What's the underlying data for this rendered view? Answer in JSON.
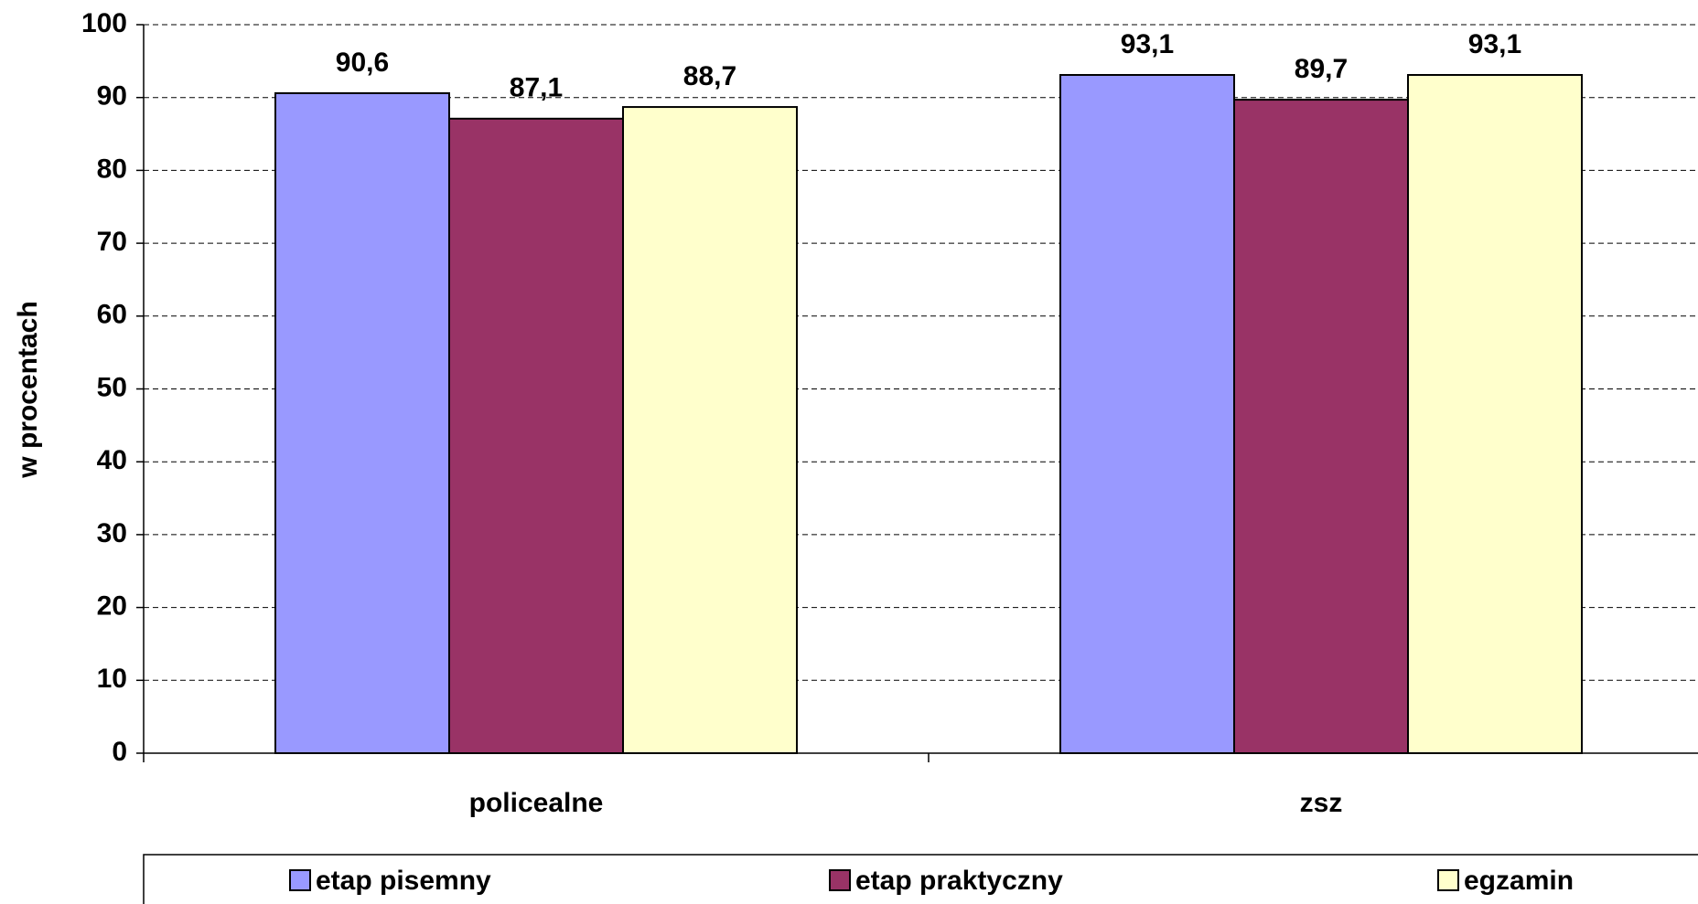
{
  "chart_data": {
    "type": "bar",
    "ylabel": "w procentach",
    "categories": [
      "policealne",
      "zsz"
    ],
    "series": [
      {
        "name": "etap pisemny",
        "color": "#9999ff",
        "values": [
          90.6,
          93.1
        ],
        "value_labels": [
          "90,6",
          "93,1"
        ]
      },
      {
        "name": "etap praktyczny",
        "color": "#993366",
        "values": [
          87.1,
          89.7
        ],
        "value_labels": [
          "87,1",
          "89,7"
        ]
      },
      {
        "name": "egzamin",
        "color": "#ffffcc",
        "values": [
          88.7,
          93.1
        ],
        "value_labels": [
          "88,7",
          "93,1"
        ]
      }
    ],
    "ylim": [
      0,
      100
    ],
    "yticks": [
      0,
      10,
      20,
      30,
      40,
      50,
      60,
      70,
      80,
      90,
      100
    ],
    "grid": true,
    "legend": "bottom"
  }
}
